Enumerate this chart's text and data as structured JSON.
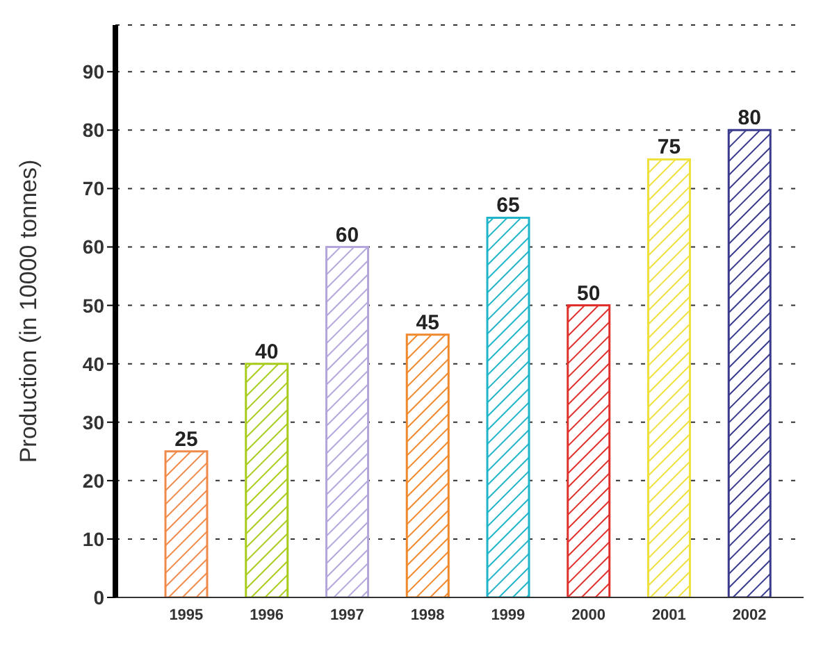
{
  "chart_data": {
    "type": "bar",
    "ylabel": "Production (in 10000 tonnes)",
    "categories": [
      "1995",
      "1996",
      "1997",
      "1998",
      "1999",
      "2000",
      "2001",
      "2002"
    ],
    "values": [
      25,
      40,
      60,
      45,
      65,
      50,
      75,
      80
    ],
    "colors": [
      "#f08a4b",
      "#a8cc1c",
      "#b4a6dc",
      "#f0882c",
      "#1fb4c8",
      "#e0302c",
      "#f0e03c",
      "#3a3a8c"
    ],
    "ylim": [
      0,
      98
    ],
    "yticks": [
      0,
      10,
      20,
      30,
      40,
      50,
      60,
      70,
      80,
      90
    ],
    "grid": "y",
    "data_labels": true
  }
}
